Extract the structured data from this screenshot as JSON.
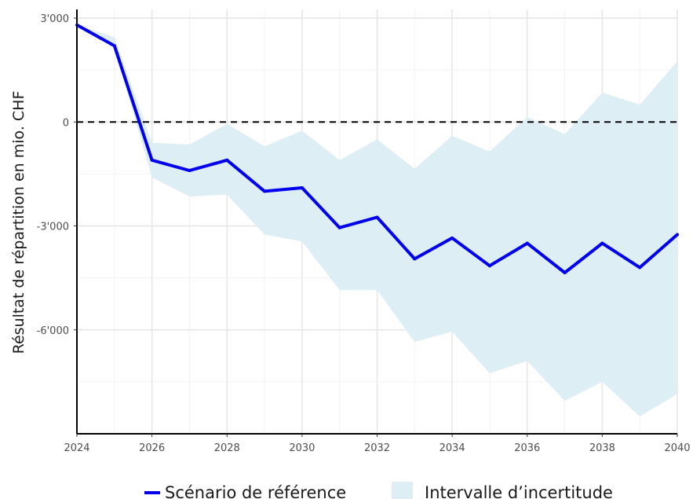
{
  "chart_data": {
    "type": "line",
    "title": "",
    "xlabel": "",
    "ylabel": "Résultat de répartition en mio. CHF",
    "xlim": [
      2024,
      2040
    ],
    "ylim": [
      -9000,
      3250
    ],
    "x_ticks": [
      2024,
      2026,
      2028,
      2030,
      2032,
      2034,
      2036,
      2038,
      2040
    ],
    "y_ticks": [
      3000,
      0,
      -3000,
      -6000
    ],
    "y_tick_labels": [
      "3'000",
      "0",
      "-3'000",
      "-6'000"
    ],
    "x": [
      2024,
      2025,
      2026,
      2027,
      2028,
      2029,
      2030,
      2031,
      2032,
      2033,
      2034,
      2035,
      2036,
      2037,
      2038,
      2039,
      2040
    ],
    "series": [
      {
        "name": "Scénario de référence",
        "color": "#0000ee",
        "values": [
          2800,
          2200,
          -1100,
          -1400,
          -1100,
          -2000,
          -1900,
          -3050,
          -2750,
          -3950,
          -3350,
          -4150,
          -3500,
          -4350,
          -3500,
          -4200,
          -3250
        ]
      }
    ],
    "band": {
      "name": "Intervalle d’incertitude",
      "color": "#ddeef4",
      "lower": [
        2800,
        2150,
        -1600,
        -2150,
        -2100,
        -3250,
        -3450,
        -4850,
        -4850,
        -6350,
        -6050,
        -7250,
        -6900,
        -8050,
        -7500,
        -8500,
        -7850
      ],
      "upper": [
        2800,
        2450,
        -600,
        -650,
        -50,
        -700,
        -250,
        -1100,
        -500,
        -1350,
        -400,
        -850,
        150,
        -350,
        850,
        500,
        1750
      ]
    },
    "reference_line": {
      "y": 0,
      "style": "dashed",
      "color": "#000000"
    },
    "grid": true,
    "legend_position": "bottom"
  }
}
